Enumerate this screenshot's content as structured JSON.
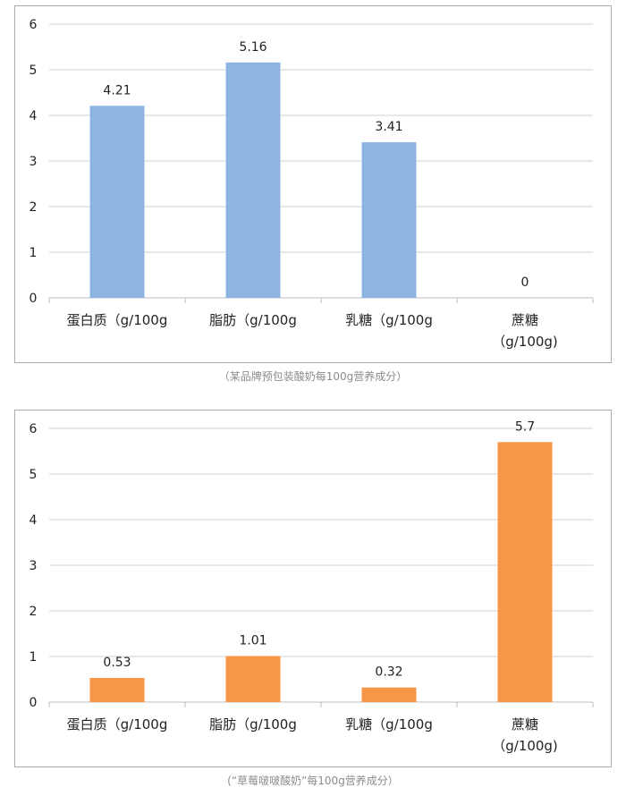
{
  "chart_data": [
    {
      "type": "bar",
      "categories": [
        [
          "蛋白质（g/100g"
        ],
        [
          "脂肪（g/100g"
        ],
        [
          "乳糖（g/100g"
        ],
        [
          "蔗糖",
          "（g/100g)"
        ]
      ],
      "values": [
        4.21,
        5.16,
        3.41,
        0
      ],
      "value_labels": [
        "4.21",
        "5.16",
        "3.41",
        "0"
      ],
      "ylim": [
        0,
        6
      ],
      "yticks": [
        "0",
        "1",
        "2",
        "3",
        "4",
        "5",
        "6"
      ],
      "grid": true,
      "color": "#8db4e2",
      "caption": "（某品牌预包装酸奶每100g营养成分）"
    },
    {
      "type": "bar",
      "categories": [
        [
          "蛋白质（g/100g"
        ],
        [
          "脂肪（g/100g"
        ],
        [
          "乳糖（g/100g"
        ],
        [
          "蔗糖",
          "（g/100g)"
        ]
      ],
      "values": [
        0.53,
        1.01,
        0.32,
        5.7
      ],
      "value_labels": [
        "0.53",
        "1.01",
        "0.32",
        "5.7"
      ],
      "ylim": [
        0,
        6
      ],
      "yticks": [
        "0",
        "1",
        "2",
        "3",
        "4",
        "5",
        "6"
      ],
      "grid": true,
      "color": "#f79646",
      "caption": "(“草莓啵啵酸奶”每100g营养成分）"
    }
  ]
}
